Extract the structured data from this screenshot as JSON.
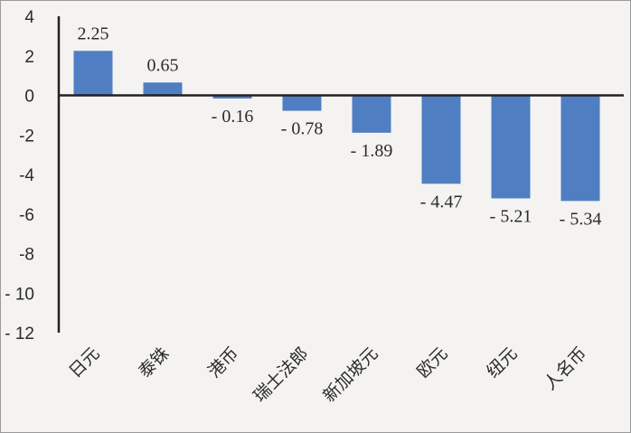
{
  "chart_data": {
    "type": "bar",
    "categories": [
      "日元",
      "泰铢",
      "港币",
      "瑞士法郎",
      "新加坡元",
      "欧元",
      "纽元",
      "人名币"
    ],
    "values": [
      2.25,
      0.65,
      -0.16,
      -0.78,
      -1.89,
      -4.47,
      -5.21,
      -5.34
    ],
    "value_labels": [
      "2.25",
      "0.65",
      "- 0.16",
      "- 0.78",
      "- 1.89",
      "- 4.47",
      "- 5.21",
      "- 5.34"
    ],
    "y_ticks": [
      4,
      2,
      0,
      -2,
      -4,
      -6,
      -8,
      -10,
      -12
    ],
    "y_tick_labels": [
      "4",
      "2",
      "0",
      "-2",
      "-4",
      "-6",
      "-8",
      "- 10",
      "- 12"
    ],
    "ylim": [
      -12,
      4
    ],
    "grid": false,
    "legend": false,
    "title": "",
    "xlabel": "",
    "ylabel": "",
    "colors": {
      "bar": "#4f7fc2",
      "axis": "#222222",
      "background": "#f4f3f1"
    }
  }
}
